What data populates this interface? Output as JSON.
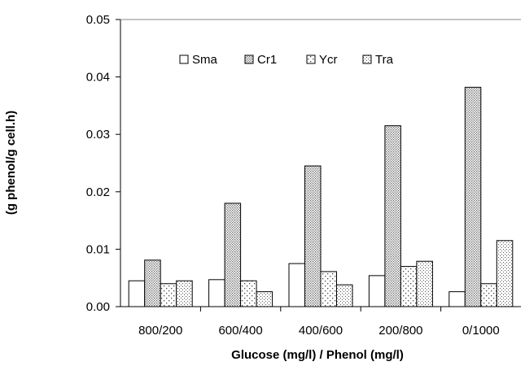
{
  "chart_data": {
    "type": "bar",
    "title": "",
    "xlabel": "Glucose (mg/l) / Phenol (mg/l)",
    "ylabel": "(g phenol/g cell.h)",
    "ylim": [
      0,
      0.05
    ],
    "yticks": [
      "0.00",
      "0.01",
      "0.02",
      "0.03",
      "0.04",
      "0.05"
    ],
    "categories": [
      "800/200",
      "600/400",
      "400/600",
      "200/800",
      "0/1000"
    ],
    "series": [
      {
        "name": "Sma",
        "values": [
          0.0045,
          0.0047,
          0.0075,
          0.0054,
          0.0026
        ],
        "pattern": "plain"
      },
      {
        "name": "Cr1",
        "values": [
          0.0081,
          0.018,
          0.0245,
          0.0315,
          0.0382
        ],
        "pattern": "dense-dots"
      },
      {
        "name": "Ycr",
        "values": [
          0.004,
          0.0045,
          0.0061,
          0.007,
          0.004
        ],
        "pattern": "sparse-dots"
      },
      {
        "name": "Tra",
        "values": [
          0.0045,
          0.0026,
          0.0038,
          0.0079,
          0.0115
        ],
        "pattern": "fine-dots"
      }
    ],
    "grid": false,
    "legend_position": "top"
  }
}
